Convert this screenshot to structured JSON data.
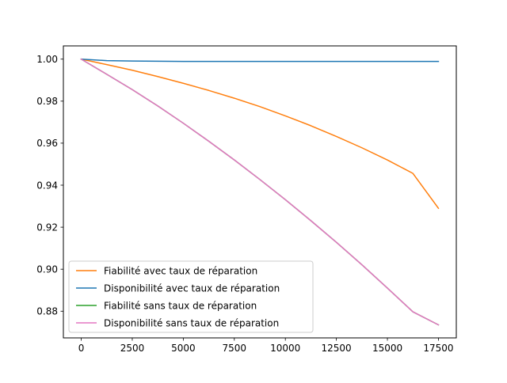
{
  "chart_data": {
    "type": "line",
    "title": "",
    "xlabel": "",
    "ylabel": "",
    "xlim": [
      -875,
      18375
    ],
    "ylim": [
      0.8673,
      1.0063
    ],
    "xticks": [
      0,
      2500,
      5000,
      7500,
      10000,
      12500,
      15000,
      17500
    ],
    "xtick_labels": [
      "0",
      "2500",
      "5000",
      "7500",
      "10000",
      "12500",
      "15000",
      "17500"
    ],
    "yticks": [
      0.88,
      0.9,
      0.92,
      0.94,
      0.96,
      0.98,
      1.0
    ],
    "ytick_labels": [
      "0.88",
      "0.90",
      "0.92",
      "0.94",
      "0.96",
      "0.98",
      "1.00"
    ],
    "grid": false,
    "legend_position": "lower-left",
    "x": [
      0,
      1250,
      2500,
      3750,
      5000,
      6250,
      7500,
      8750,
      10000,
      11250,
      12500,
      13750,
      15000,
      16250,
      17500
    ],
    "series": [
      {
        "name": "Fiabilité avec taux de réparation",
        "color": "#ff7f0e",
        "values": [
          1.0,
          0.9974,
          0.9947,
          0.9917,
          0.9885,
          0.9851,
          0.9814,
          0.9774,
          0.973,
          0.9683,
          0.9632,
          0.9578,
          0.952,
          0.9456,
          0.929
        ]
      },
      {
        "name": "Disponibilité avec taux de réparation",
        "color": "#1f77b4",
        "values": [
          1.0,
          0.9993,
          0.9991,
          0.999,
          0.9989,
          0.9989,
          0.9989,
          0.9989,
          0.9989,
          0.9989,
          0.9989,
          0.9989,
          0.9989,
          0.9989,
          0.9989
        ]
      },
      {
        "name": "Fiabilité sans taux de réparation",
        "color": "#2ca02c",
        "values": [
          1.0,
          0.9928,
          0.9855,
          0.9777,
          0.9695,
          0.9609,
          0.952,
          0.9427,
          0.9331,
          0.9231,
          0.9128,
          0.9021,
          0.891,
          0.8797,
          0.8735
        ]
      },
      {
        "name": "Disponibilité sans taux de réparation",
        "color": "#e377c2",
        "values": [
          1.0,
          0.9928,
          0.9855,
          0.9777,
          0.9695,
          0.9609,
          0.952,
          0.9427,
          0.9331,
          0.9231,
          0.9128,
          0.9021,
          0.891,
          0.8797,
          0.8735
        ]
      }
    ]
  }
}
